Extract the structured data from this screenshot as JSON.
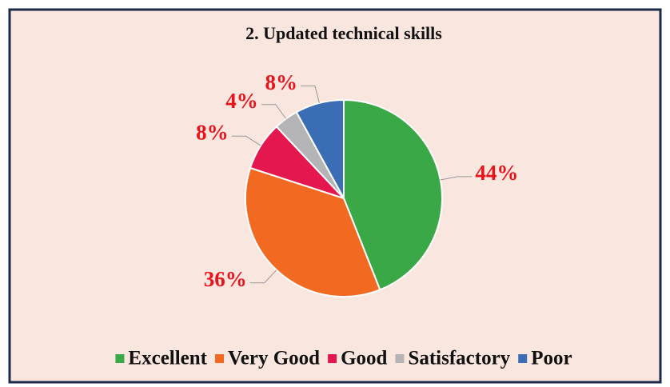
{
  "chart_data": {
    "type": "pie",
    "title": "2. Updated technical  skills",
    "categories": [
      "Excellent",
      "Very Good",
      "Good",
      "Satisfactory",
      "Poor"
    ],
    "values": [
      44,
      36,
      8,
      4,
      8
    ],
    "value_labels": [
      "44%",
      "36%",
      "8%",
      "4%",
      "8%"
    ],
    "colors": [
      "#3aa846",
      "#f26a21",
      "#e4174f",
      "#b4b4b6",
      "#3b6db5"
    ],
    "legend": "bottom"
  }
}
